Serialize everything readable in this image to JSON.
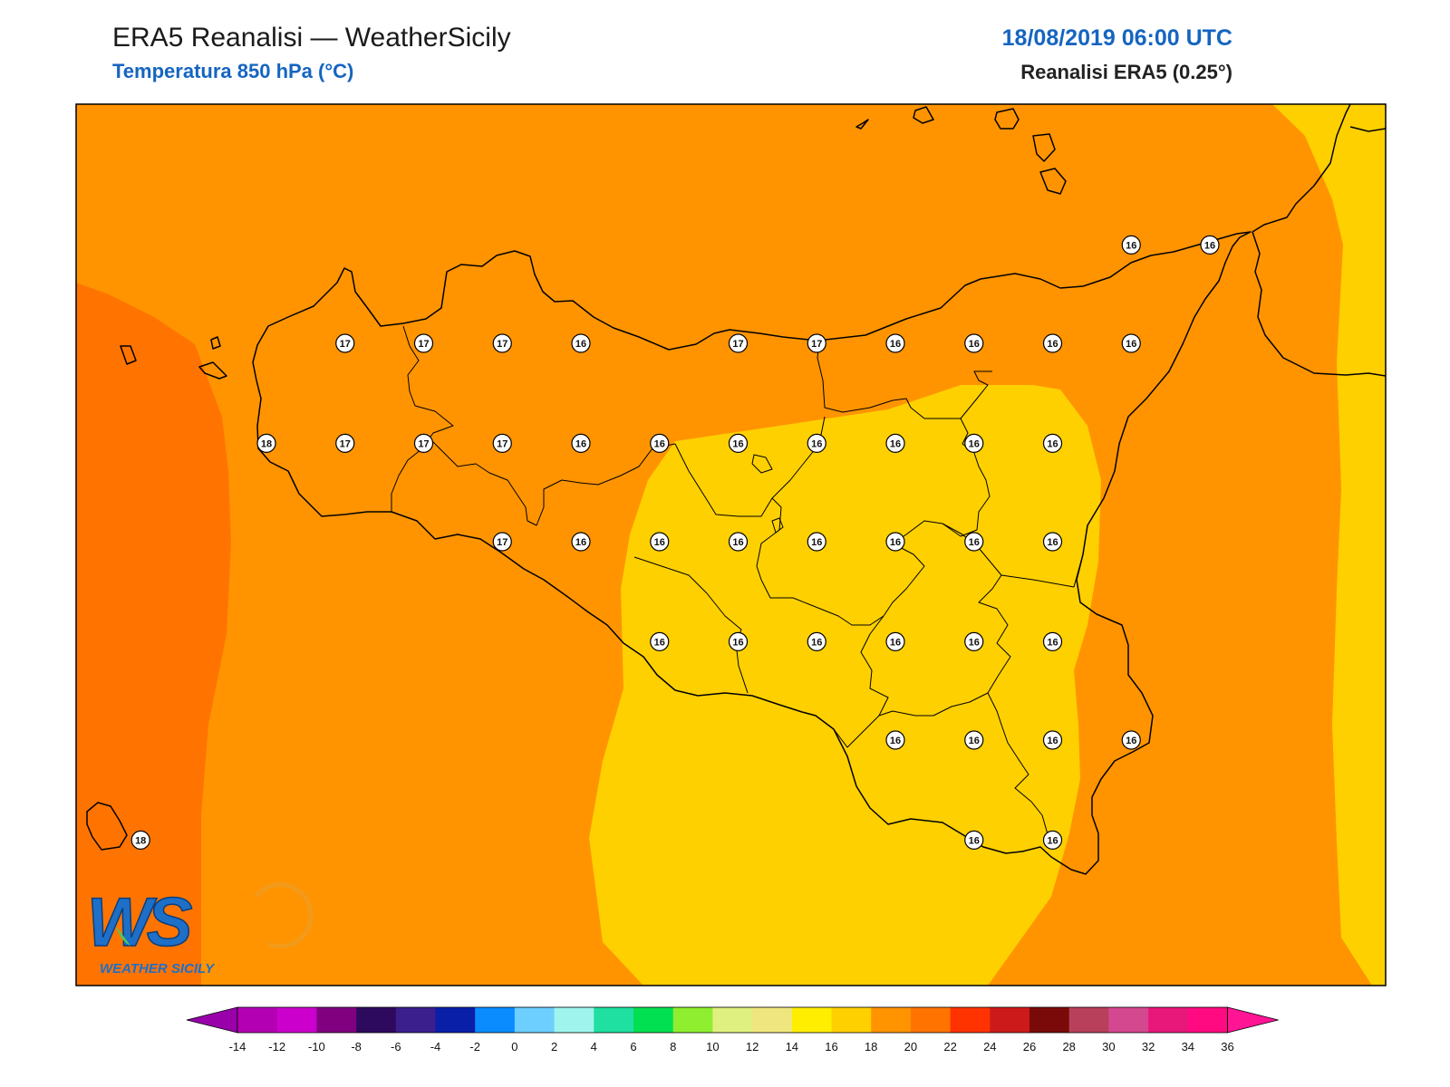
{
  "header": {
    "title": "ERA5 Reanalisi — WeatherSicily",
    "subtitle": "Temperatura 850 hPa (°C)",
    "datetime": "18/08/2019 06:00 UTC",
    "source": "Reanalisi ERA5 (0.25°)"
  },
  "logo": {
    "letters": "WS",
    "text": "WEATHER SICILY"
  },
  "colors": {
    "band_14_16": "#fed000",
    "band_16_18": "#ff9400",
    "band_18_20": "#ff7400",
    "coast": "#000000",
    "header_accent": "#1565c0"
  },
  "colorbar": {
    "ticks": [
      "-14",
      "-12",
      "-10",
      "-8",
      "-6",
      "-4",
      "-2",
      "0",
      "2",
      "4",
      "6",
      "8",
      "10",
      "12",
      "14",
      "16",
      "18",
      "20",
      "22",
      "24",
      "26",
      "28",
      "30",
      "32",
      "34",
      "36"
    ],
    "colors": [
      "#b300b3",
      "#cc00cc",
      "#800080",
      "#2e0a5e",
      "#3b1f8c",
      "#0a1fa8",
      "#0a8cff",
      "#6ccfff",
      "#9ff5ee",
      "#1fe0a0",
      "#00e050",
      "#90ee30",
      "#e0f080",
      "#f0e680",
      "#ffee00",
      "#fed000",
      "#ff9400",
      "#ff7400",
      "#ff3300",
      "#cc1a1a",
      "#7a0a0a",
      "#b8405a",
      "#d44890",
      "#e8187a",
      "#ff0a80"
    ],
    "under_color": "#9900aa",
    "over_color": "#ff1493"
  },
  "stations": [
    {
      "lon": 12.45,
      "lat": 38.25,
      "value": "17"
    },
    {
      "lon": 12.95,
      "lat": 38.25,
      "value": "17"
    },
    {
      "lon": 13.45,
      "lat": 38.25,
      "value": "17"
    },
    {
      "lon": 13.95,
      "lat": 38.25,
      "value": "16"
    },
    {
      "lon": 14.95,
      "lat": 38.25,
      "value": "17"
    },
    {
      "lon": 15.45,
      "lat": 38.25,
      "value": "17"
    },
    {
      "lon": 15.95,
      "lat": 38.25,
      "value": "16"
    },
    {
      "lon": 16.45,
      "lat": 38.25,
      "value": "16"
    },
    {
      "lon": 16.95,
      "lat": 38.25,
      "value": "16"
    },
    {
      "lon": 17.45,
      "lat": 38.25,
      "value": "16"
    },
    {
      "lon": 17.45,
      "lat": 38.87,
      "value": "16"
    },
    {
      "lon": 17.95,
      "lat": 38.87,
      "value": "16"
    },
    {
      "lon": 11.95,
      "lat": 37.62,
      "value": "18"
    },
    {
      "lon": 12.45,
      "lat": 37.62,
      "value": "17"
    },
    {
      "lon": 12.95,
      "lat": 37.62,
      "value": "17"
    },
    {
      "lon": 13.45,
      "lat": 37.62,
      "value": "17"
    },
    {
      "lon": 13.95,
      "lat": 37.62,
      "value": "16"
    },
    {
      "lon": 14.45,
      "lat": 37.62,
      "value": "16"
    },
    {
      "lon": 14.95,
      "lat": 37.62,
      "value": "16"
    },
    {
      "lon": 15.45,
      "lat": 37.62,
      "value": "16"
    },
    {
      "lon": 15.95,
      "lat": 37.62,
      "value": "16"
    },
    {
      "lon": 16.45,
      "lat": 37.62,
      "value": "16"
    },
    {
      "lon": 16.95,
      "lat": 37.62,
      "value": "16"
    },
    {
      "lon": 13.45,
      "lat": 37.0,
      "value": "17"
    },
    {
      "lon": 13.95,
      "lat": 37.0,
      "value": "16"
    },
    {
      "lon": 14.45,
      "lat": 37.0,
      "value": "16"
    },
    {
      "lon": 14.95,
      "lat": 37.0,
      "value": "16"
    },
    {
      "lon": 15.45,
      "lat": 37.0,
      "value": "16"
    },
    {
      "lon": 15.95,
      "lat": 37.0,
      "value": "16"
    },
    {
      "lon": 16.45,
      "lat": 37.0,
      "value": "16"
    },
    {
      "lon": 16.95,
      "lat": 37.0,
      "value": "16"
    },
    {
      "lon": 14.45,
      "lat": 36.37,
      "value": "16"
    },
    {
      "lon": 14.95,
      "lat": 36.37,
      "value": "16"
    },
    {
      "lon": 15.45,
      "lat": 36.37,
      "value": "16"
    },
    {
      "lon": 15.95,
      "lat": 36.37,
      "value": "16"
    },
    {
      "lon": 16.45,
      "lat": 36.37,
      "value": "16"
    },
    {
      "lon": 16.95,
      "lat": 36.37,
      "value": "16"
    },
    {
      "lon": 15.95,
      "lat": 35.75,
      "value": "16"
    },
    {
      "lon": 16.45,
      "lat": 35.75,
      "value": "16"
    },
    {
      "lon": 16.95,
      "lat": 35.75,
      "value": "16"
    },
    {
      "lon": 17.45,
      "lat": 35.75,
      "value": "16"
    },
    {
      "lon": 11.15,
      "lat": 35.12,
      "value": "18"
    },
    {
      "lon": 16.45,
      "lat": 35.12,
      "value": "16"
    },
    {
      "lon": 16.95,
      "lat": 35.12,
      "value": "16"
    }
  ]
}
